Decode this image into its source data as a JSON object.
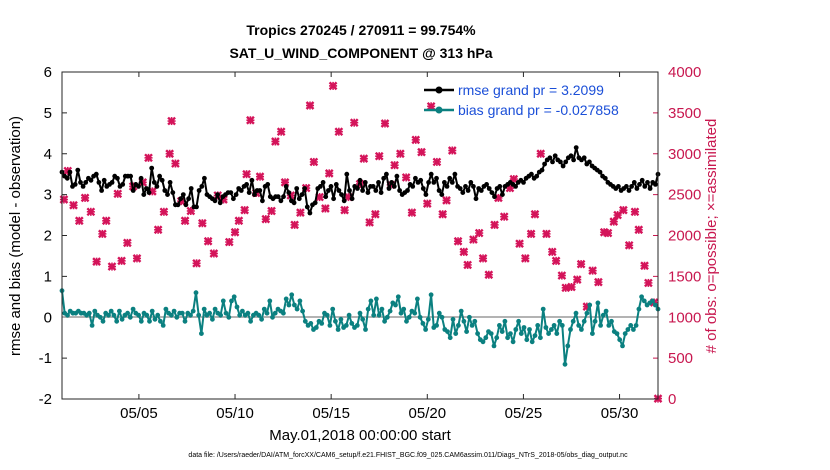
{
  "chart_data": {
    "type": "line",
    "title": "Tropics 270245 / 270911 = 99.754%",
    "subtitle": "SAT_U_WIND_COMPONENT @ 313 hPa",
    "xlabel": "May.01,2018 00:00:00 start",
    "ylabel": "rmse and bias (model - observation)",
    "ylabel_right": "# of obs: o=possible; ×=assimilated",
    "footnote": "data file: /Users/raeder/DAI/ATM_forcXX/CAM6_setup/f.e21.FHIST_BGC.f09_025.CAM6assim.011/Diags_NTrS_2018-05/obs_diag_output.nc",
    "xlim": [
      1.0,
      32.0
    ],
    "ylim": [
      -2,
      6
    ],
    "ylim_right": [
      0,
      4000
    ],
    "x_tick_values": [
      5,
      10,
      15,
      20,
      25,
      30
    ],
    "x_tick_labels": [
      "05/05",
      "05/10",
      "05/15",
      "05/20",
      "05/25",
      "05/30"
    ],
    "y_ticks": [
      "-2",
      "-1",
      "0",
      "1",
      "2",
      "3",
      "4",
      "5",
      "6"
    ],
    "y_ticks_right": [
      "0",
      "500",
      "1000",
      "1500",
      "2000",
      "2500",
      "3000",
      "3500",
      "4000"
    ],
    "legend_location": "top-right",
    "series": [
      {
        "name": "rmse grand pr = 3.2099",
        "color": "#000000",
        "marker": "circle",
        "axis": "left",
        "values": [
          3.55,
          3.45,
          3.4,
          3.55,
          3.2,
          3.25,
          3.6,
          3.3,
          3.2,
          3.3,
          3.4,
          3.35,
          3.45,
          3.5,
          3.3,
          3.1,
          3.35,
          3.2,
          3.25,
          3.3,
          3.45,
          3.4,
          3.2,
          3.25,
          3.45,
          3.45,
          3.45,
          3.1,
          3.25,
          3.2,
          3.4,
          3.0,
          3.15,
          3.05,
          3.65,
          3.3,
          3.2,
          3.45,
          3.35,
          3.1,
          3.0,
          3.3,
          3.05,
          2.75,
          2.75,
          2.9,
          3.0,
          2.75,
          2.9,
          3.15,
          2.7,
          2.7,
          3.1,
          3.2,
          3.4,
          3.0,
          2.95,
          2.9,
          2.85,
          3.0,
          2.8,
          2.95,
          3.0,
          3.05,
          3.05,
          2.9,
          3.0,
          3.15,
          3.1,
          3.2,
          3.25,
          3.05,
          3.35,
          3.0,
          3.1,
          3.1,
          2.85,
          3.2,
          3.25,
          2.95,
          2.9,
          2.95,
          2.95,
          2.85,
          2.95,
          3.2,
          3.05,
          2.85,
          2.8,
          3.15,
          2.9,
          3.0,
          3.15,
          2.7,
          2.55,
          2.75,
          2.8,
          3.15,
          3.2,
          3.3,
          2.95,
          3.1,
          3.2,
          2.9,
          3.25,
          3.1,
          3.0,
          2.85,
          3.5,
          3.1,
          2.9,
          3.2,
          3.15,
          3.35,
          3.1,
          3.3,
          3.05,
          3.2,
          3.2,
          3.1,
          3.3,
          3.05,
          3.4,
          3.5,
          3.15,
          3.3,
          3.2,
          3.45,
          3.1,
          3.0,
          3.05,
          3.1,
          3.25,
          3.2,
          3.4,
          3.3,
          3.35,
          3.15,
          3.0,
          3.3,
          3.5,
          3.3,
          3.4,
          3.1,
          3.0,
          3.3,
          3.2,
          3.4,
          3.3,
          3.5,
          3.2,
          3.15,
          3.05,
          3.2,
          3.1,
          3.3,
          3.2,
          2.9,
          3.15,
          3.1,
          3.2,
          3.25,
          3.15,
          3.05,
          2.95,
          3.15,
          3.2,
          3.0,
          3.2,
          3.25,
          3.3,
          3.25,
          3.2,
          3.3,
          3.35,
          3.3,
          3.4,
          3.45,
          3.5,
          3.4,
          3.45,
          3.55,
          3.6,
          3.75,
          3.85,
          3.9,
          3.8,
          3.95,
          3.85,
          3.8,
          3.7,
          3.8,
          3.9,
          3.95,
          3.85,
          4.15,
          3.9,
          3.85,
          3.9,
          3.75,
          3.8,
          3.7,
          3.65,
          3.6,
          3.55,
          3.45,
          3.4,
          3.3,
          3.25,
          3.2,
          3.15,
          3.2,
          3.1,
          3.15,
          3.2,
          3.1,
          3.2,
          3.3,
          3.15,
          3.25,
          3.35,
          3.2,
          3.3,
          3.15,
          3.3,
          3.25,
          3.5
        ]
      },
      {
        "name": "bias grand pr = -0.027858",
        "color": "#0b8080",
        "marker": "circle",
        "axis": "left",
        "values": [
          0.65,
          0.1,
          0.05,
          0.15,
          0.1,
          0.1,
          0.15,
          0.1,
          0.1,
          0.05,
          0.1,
          -0.2,
          0.15,
          0.05,
          0.0,
          -0.1,
          0.1,
          0.05,
          0.15,
          0.05,
          -0.1,
          0.15,
          -0.05,
          0.05,
          0.1,
          0.0,
          0.2,
          0.1,
          0.05,
          -0.1,
          0.1,
          0.05,
          -0.1,
          0.15,
          -0.05,
          0.05,
          -0.1,
          -0.2,
          0.2,
          0.1,
          0.05,
          0.15,
          0.0,
          0.1,
          0.1,
          -0.1,
          0.1,
          0.05,
          0.15,
          0.6,
          0.05,
          -0.4,
          0.2,
          0.05,
          0.1,
          -0.05,
          0.2,
          0.1,
          0.05,
          0.4,
          0.1,
          0.0,
          0.4,
          0.5,
          0.25,
          0.05,
          0.15,
          0.05,
          0.1,
          -0.1,
          0.05,
          0.1,
          0.05,
          -0.05,
          0.2,
          0.1,
          0.4,
          0.0,
          0.1,
          0.2,
          0.15,
          0.1,
          0.45,
          0.3,
          0.55,
          0.3,
          0.2,
          0.4,
          0.15,
          -0.1,
          -0.2,
          -0.15,
          -0.3,
          -0.25,
          -0.1,
          -0.15,
          0.1,
          0.05,
          -0.2,
          0.2,
          -0.1,
          -0.3,
          -0.05,
          -0.25,
          -0.2,
          0.05,
          -0.15,
          -0.25,
          -0.2,
          0.1,
          -0.05,
          -0.3,
          0.2,
          0.4,
          0.05,
          0.45,
          0.05,
          0.2,
          -0.1,
          0.0,
          0.15,
          0.35,
          0.3,
          0.5,
          0.1,
          0.2,
          -0.1,
          0.0,
          0.15,
          0.1,
          0.45,
          0.0,
          -0.15,
          -0.3,
          -0.05,
          0.55,
          -0.25,
          -0.2,
          0.1,
          0.0,
          -0.3,
          -0.35,
          -0.5,
          -0.05,
          -0.4,
          -0.2,
          0.15,
          -0.1,
          -0.35,
          0.0,
          -0.2,
          -0.1,
          -0.4,
          -0.55,
          -0.6,
          -0.5,
          -0.35,
          -0.4,
          -0.7,
          -0.5,
          -0.2,
          -0.35,
          -0.1,
          -0.5,
          -0.4,
          -0.6,
          -0.3,
          -0.1,
          -0.4,
          -0.25,
          -0.55,
          -0.3,
          -0.6,
          -0.45,
          -0.2,
          -0.5,
          0.2,
          -0.25,
          -0.4,
          -0.3,
          -0.2,
          -0.4,
          -0.1,
          -0.2,
          -1.15,
          -0.7,
          -0.3,
          -0.1,
          0.1,
          -0.2,
          -0.3,
          -0.1,
          0.1,
          0.3,
          -0.4,
          -0.1,
          0.35,
          -0.2,
          0.05,
          0.15,
          -0.2,
          -0.1,
          -0.35,
          -0.4,
          -0.55,
          -0.7,
          -0.4,
          -0.3,
          -0.2,
          -0.3,
          -0.2,
          0.2,
          0.5,
          0.4,
          0.3,
          0.35,
          0.4,
          0.3,
          0.2
        ]
      }
    ],
    "assimilated_counts": {
      "name": "# of obs assimilated",
      "color": "#d4145a",
      "marker": "x",
      "axis": "right",
      "points": [
        [
          1.1,
          2440
        ],
        [
          1.3,
          2790
        ],
        [
          1.6,
          2370
        ],
        [
          1.9,
          2180
        ],
        [
          2.2,
          2460
        ],
        [
          2.5,
          2290
        ],
        [
          2.8,
          1680
        ],
        [
          3.1,
          2020
        ],
        [
          3.3,
          2180
        ],
        [
          3.6,
          1620
        ],
        [
          3.9,
          2510
        ],
        [
          4.1,
          1690
        ],
        [
          4.4,
          1910
        ],
        [
          4.7,
          2600
        ],
        [
          4.9,
          1720
        ],
        [
          5.2,
          2650
        ],
        [
          5.5,
          2950
        ],
        [
          5.7,
          2540
        ],
        [
          6.0,
          2070
        ],
        [
          6.3,
          2290
        ],
        [
          6.6,
          3000
        ],
        [
          6.7,
          3400
        ],
        [
          6.9,
          2880
        ],
        [
          7.2,
          2420
        ],
        [
          7.4,
          2180
        ],
        [
          7.7,
          2300
        ],
        [
          8.0,
          1660
        ],
        [
          8.3,
          2150
        ],
        [
          8.6,
          1930
        ],
        [
          8.9,
          1780
        ],
        [
          9.1,
          2490
        ],
        [
          9.4,
          2440
        ],
        [
          9.7,
          1920
        ],
        [
          10.0,
          2040
        ],
        [
          10.2,
          2180
        ],
        [
          10.5,
          2310
        ],
        [
          10.6,
          2750
        ],
        [
          10.8,
          3410
        ],
        [
          11.1,
          2520
        ],
        [
          11.3,
          2720
        ],
        [
          11.6,
          2200
        ],
        [
          11.9,
          2300
        ],
        [
          12.1,
          3150
        ],
        [
          12.4,
          3270
        ],
        [
          12.6,
          2650
        ],
        [
          12.9,
          2490
        ],
        [
          13.1,
          2130
        ],
        [
          13.4,
          2280
        ],
        [
          13.7,
          2580
        ],
        [
          13.9,
          3590
        ],
        [
          14.1,
          2900
        ],
        [
          14.4,
          2470
        ],
        [
          14.7,
          2330
        ],
        [
          14.9,
          2760
        ],
        [
          15.1,
          3830
        ],
        [
          15.4,
          3270
        ],
        [
          15.7,
          2310
        ],
        [
          15.9,
          2470
        ],
        [
          16.2,
          3380
        ],
        [
          16.5,
          2630
        ],
        [
          16.7,
          2940
        ],
        [
          17.0,
          2160
        ],
        [
          17.3,
          2260
        ],
        [
          17.5,
          2970
        ],
        [
          17.8,
          3370
        ],
        [
          18.1,
          2620
        ],
        [
          18.3,
          2860
        ],
        [
          18.6,
          3000
        ],
        [
          18.9,
          2710
        ],
        [
          19.2,
          2280
        ],
        [
          19.4,
          3170
        ],
        [
          19.7,
          3020
        ],
        [
          20.0,
          2390
        ],
        [
          20.2,
          3580
        ],
        [
          20.5,
          2900
        ],
        [
          20.8,
          2260
        ],
        [
          21.0,
          2430
        ],
        [
          21.3,
          3040
        ],
        [
          21.6,
          1930
        ],
        [
          21.9,
          1800
        ],
        [
          22.1,
          1640
        ],
        [
          22.4,
          1950
        ],
        [
          22.7,
          2030
        ],
        [
          22.9,
          1720
        ],
        [
          23.2,
          1520
        ],
        [
          23.5,
          2130
        ],
        [
          23.7,
          2460
        ],
        [
          24.0,
          2230
        ],
        [
          24.3,
          2580
        ],
        [
          24.5,
          2690
        ],
        [
          24.8,
          1900
        ],
        [
          25.1,
          1720
        ],
        [
          25.4,
          2020
        ],
        [
          25.6,
          2260
        ],
        [
          25.9,
          3000
        ],
        [
          26.2,
          2020
        ],
        [
          26.5,
          1800
        ],
        [
          26.7,
          1690
        ],
        [
          27.0,
          1510
        ],
        [
          27.2,
          1360
        ],
        [
          27.5,
          1370
        ],
        [
          27.8,
          1460
        ],
        [
          28.0,
          1650
        ],
        [
          28.3,
          1130
        ],
        [
          28.6,
          1570
        ],
        [
          28.9,
          1430
        ],
        [
          29.2,
          2040
        ],
        [
          29.4,
          2030
        ],
        [
          29.7,
          2170
        ],
        [
          29.9,
          2250
        ],
        [
          30.2,
          2310
        ],
        [
          30.5,
          1880
        ],
        [
          30.8,
          2290
        ],
        [
          31.0,
          2070
        ],
        [
          31.3,
          1630
        ],
        [
          31.5,
          1420
        ],
        [
          31.8,
          1180
        ],
        [
          32.0,
          5
        ]
      ]
    }
  }
}
